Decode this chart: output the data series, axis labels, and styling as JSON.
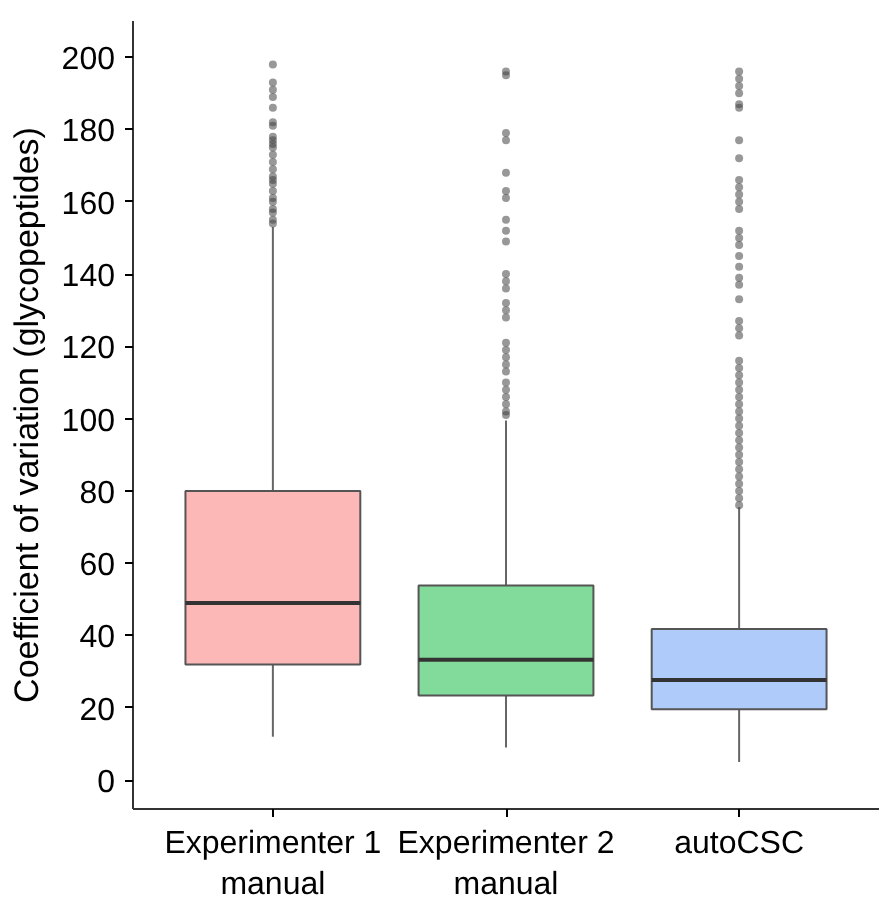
{
  "chart_data": {
    "type": "box",
    "ylabel": "Coefficient of variation (glycopeptides)",
    "categories": [
      "Experimenter 1\nmanual",
      "Experimenter 2\nmanual",
      "autoCSC"
    ],
    "colors": [
      "#fbb8b6",
      "#82db9b",
      "#aecbfa"
    ],
    "ylim": [
      -8,
      210
    ],
    "yticks": [
      0,
      20,
      40,
      60,
      80,
      100,
      120,
      140,
      160,
      180,
      200
    ],
    "grid": false,
    "boxes": [
      {
        "low": 12,
        "q1": 32,
        "median": 49,
        "q3": 80,
        "high": 153,
        "outliers": [
          198,
          193,
          191,
          189,
          186,
          182,
          181,
          178,
          177,
          176,
          175,
          173,
          171,
          169,
          167,
          166,
          165,
          163,
          161,
          160,
          158,
          157,
          155,
          154
        ]
      },
      {
        "low": 9,
        "q1": 23.4,
        "median": 33.3,
        "q3": 53.8,
        "high": 99.5,
        "outliers": [
          196,
          195,
          179,
          177,
          168,
          163,
          161,
          155,
          152,
          149,
          140,
          138,
          136,
          132,
          130,
          128,
          121,
          119,
          117,
          115,
          113,
          110,
          108,
          106,
          104,
          102,
          101
        ]
      },
      {
        "low": 5,
        "q1": 19.6,
        "median": 27.7,
        "q3": 41.8,
        "high": 75.5,
        "outliers": [
          196,
          194,
          192,
          190,
          187,
          186,
          177,
          172,
          166,
          164,
          162,
          160,
          158,
          152,
          150,
          148,
          145,
          142,
          139,
          137,
          133,
          127,
          125,
          123,
          116,
          114,
          112,
          110,
          108,
          106,
          104,
          102,
          100,
          98,
          96,
          94,
          92,
          90,
          88,
          86,
          84,
          82,
          80,
          78,
          76
        ]
      }
    ]
  }
}
